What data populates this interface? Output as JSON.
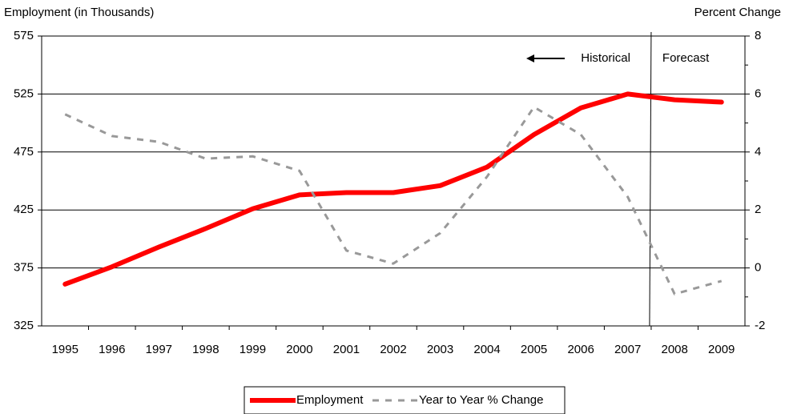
{
  "chart_data": {
    "type": "line",
    "y_label": "Employment (in Thousands)",
    "y2_label": "Percent Change",
    "categories": [
      "1995",
      "1996",
      "1997",
      "1998",
      "1999",
      "2000",
      "2001",
      "2002",
      "2003",
      "2004",
      "2005",
      "2006",
      "2007",
      "2008",
      "2009"
    ],
    "series": [
      {
        "name": "Employment",
        "color": "#ff0000",
        "axis": "y",
        "dashed": false,
        "values": [
          361,
          376,
          393,
          409,
          426,
          438,
          440,
          440,
          446,
          462,
          490,
          513,
          525,
          520,
          518
        ]
      },
      {
        "name": "Year to Year % Change",
        "color": "#999999",
        "axis": "y2",
        "dashed": true,
        "values": [
          5.3,
          4.55,
          4.35,
          3.77,
          3.85,
          3.35,
          0.6,
          0.15,
          1.2,
          3.15,
          5.55,
          4.6,
          2.45,
          -0.9,
          -0.45
        ]
      }
    ],
    "ylim": [
      325,
      575
    ],
    "yticks": [
      325,
      375,
      425,
      475,
      525,
      575
    ],
    "y2lim": [
      -2,
      8
    ],
    "y2ticks": [
      -2,
      0,
      2,
      4,
      6,
      8
    ],
    "grid": true,
    "annotations": [
      "Historical",
      "Forecast"
    ],
    "legend": "bottom"
  }
}
